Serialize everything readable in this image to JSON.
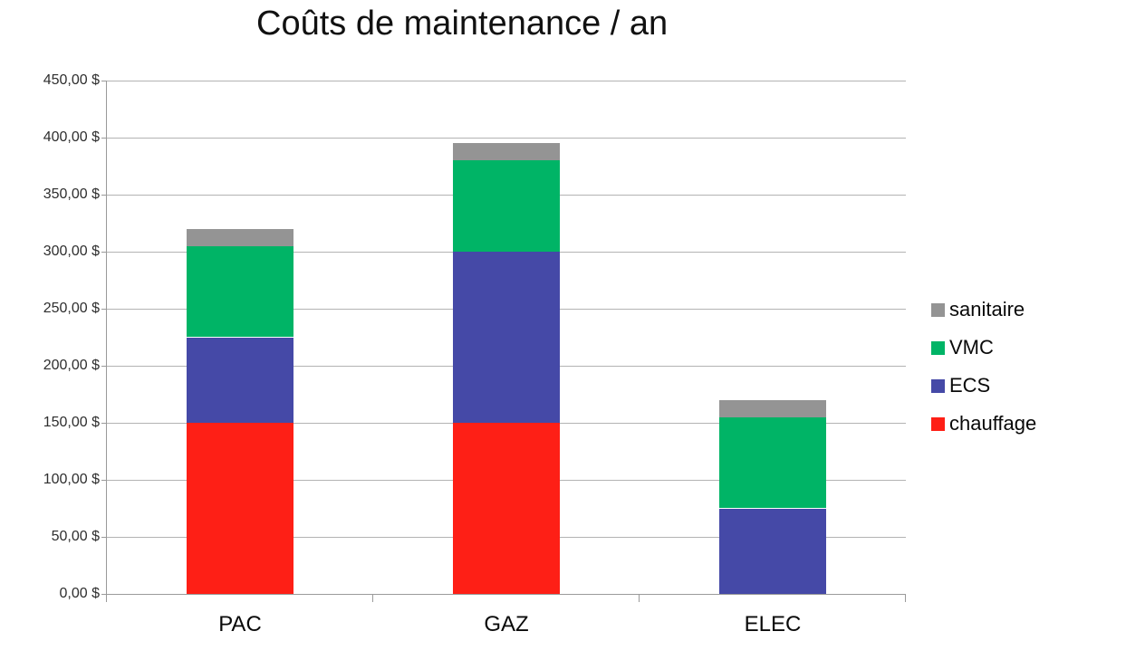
{
  "title": "Coûts de maintenance / an",
  "chart_data": {
    "type": "bar",
    "stacked": true,
    "title": "Coûts de maintenance / an",
    "xlabel": "",
    "ylabel": "",
    "categories": [
      "PAC",
      "GAZ",
      "ELEC"
    ],
    "series": [
      {
        "name": "chauffage",
        "color": "#fe1f16",
        "values": [
          150,
          150,
          0
        ]
      },
      {
        "name": "ECS",
        "color": "#4549a7",
        "values": [
          75,
          150,
          75
        ]
      },
      {
        "name": "VMC",
        "color": "#00b466",
        "values": [
          80,
          80,
          80
        ]
      },
      {
        "name": "sanitaire",
        "color": "#949494",
        "values": [
          15,
          15,
          15
        ]
      }
    ],
    "totals": {
      "PAC": 320,
      "GAZ": 395,
      "ELEC": 170
    },
    "ylim": [
      0,
      450
    ],
    "ytick_step": 50,
    "ytick_labels": [
      "0,00 $",
      "50,00 $",
      "100,00 $",
      "150,00 $",
      "200,00 $",
      "250,00 $",
      "300,00 $",
      "350,00 $",
      "400,00 $",
      "450,00 $"
    ],
    "currency_format": "comma-decimal dollars",
    "grid": true,
    "legend_position": "right",
    "legend_order": [
      "sanitaire",
      "VMC",
      "ECS",
      "chauffage"
    ],
    "colors": {
      "chauffage": "#fe1f16",
      "ECS": "#4549a7",
      "VMC": "#00b466",
      "sanitaire": "#949494",
      "gridline": "#b3b3b3",
      "axis": "#9a9a9a",
      "text": "#0a0a0a"
    }
  }
}
